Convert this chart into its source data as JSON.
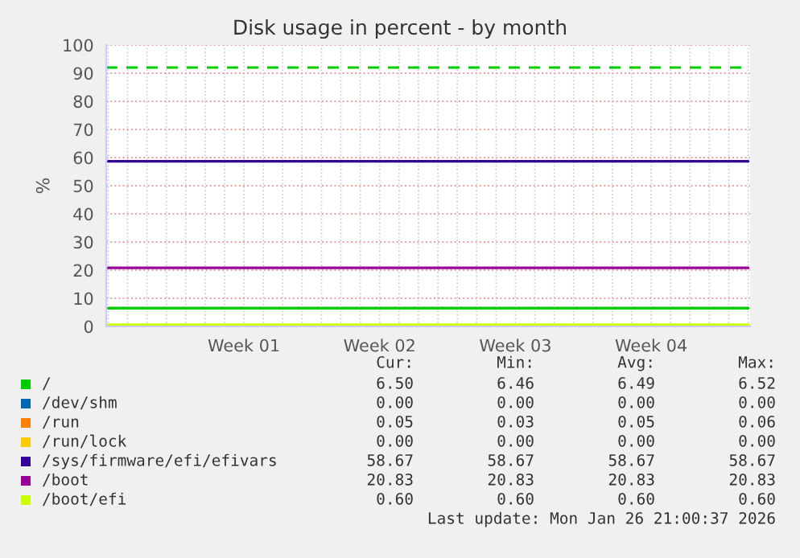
{
  "chart_data": {
    "type": "line",
    "title": "Disk usage in percent - by month",
    "ylabel": "%",
    "categories": [
      null,
      null,
      null,
      null,
      null,
      null,
      null,
      "Week 01",
      null,
      null,
      null,
      null,
      null,
      null,
      "Week 02",
      null,
      null,
      null,
      null,
      null,
      null,
      "Week 03",
      null,
      null,
      null,
      null,
      null,
      null,
      "Week 04",
      null,
      null,
      null,
      null,
      null
    ],
    "series": [
      {
        "name": "/",
        "color": "#00cc00",
        "values": [
          6.5,
          6.5,
          6.5,
          6.5,
          6.5,
          6.5,
          6.5,
          6.5,
          6.5,
          6.5,
          6.5,
          6.5,
          6.5,
          6.5,
          6.5,
          6.5,
          6.5,
          6.5,
          6.5,
          6.5,
          6.5,
          6.5,
          6.5,
          6.5,
          6.5,
          6.5,
          6.5,
          6.5,
          6.5,
          6.5,
          6.5,
          6.5,
          6.5,
          6.5
        ]
      },
      {
        "name": "/dev/shm",
        "color": "#0066b3",
        "values": [
          null,
          null,
          null,
          null,
          null,
          null,
          null,
          null,
          null,
          null,
          null,
          null,
          null,
          null,
          null,
          null,
          null,
          null,
          null,
          null,
          null,
          null,
          null,
          null,
          null,
          null,
          null,
          null,
          null,
          null,
          null,
          null,
          null,
          null
        ]
      },
      {
        "name": "/run",
        "color": "#ff8000",
        "values": [
          null,
          null,
          null,
          null,
          null,
          null,
          null,
          null,
          null,
          null,
          null,
          null,
          null,
          null,
          null,
          null,
          null,
          null,
          null,
          null,
          null,
          null,
          null,
          null,
          null,
          null,
          null,
          null,
          null,
          null,
          null,
          null,
          null,
          null
        ]
      },
      {
        "name": "/run/lock",
        "color": "#ffcc00",
        "values": [
          null,
          null,
          null,
          null,
          null,
          null,
          null,
          null,
          null,
          null,
          null,
          null,
          null,
          null,
          null,
          null,
          null,
          null,
          null,
          null,
          null,
          null,
          null,
          null,
          null,
          null,
          null,
          null,
          null,
          null,
          null,
          null,
          null,
          null
        ]
      },
      {
        "name": "/sys/firmware/efi/efivars",
        "color": "#330099",
        "values": [
          58.7,
          58.7,
          58.7,
          58.7,
          58.7,
          58.7,
          58.7,
          58.7,
          58.7,
          58.7,
          58.7,
          58.7,
          58.7,
          58.7,
          58.7,
          58.7,
          58.7,
          58.7,
          58.7,
          58.7,
          58.7,
          58.7,
          58.7,
          58.7,
          58.7,
          58.7,
          58.7,
          58.7,
          58.7,
          58.7,
          58.7,
          58.7,
          58.7,
          58.7
        ]
      },
      {
        "name": "/boot",
        "color": "#990099",
        "values": [
          20.8,
          20.8,
          20.8,
          20.8,
          20.8,
          20.8,
          20.8,
          20.8,
          20.8,
          20.8,
          20.8,
          20.8,
          20.8,
          20.8,
          20.8,
          20.8,
          20.8,
          20.8,
          20.8,
          20.8,
          20.8,
          20.8,
          20.8,
          20.8,
          20.8,
          20.8,
          20.8,
          20.8,
          20.8,
          20.8,
          20.8,
          20.8,
          20.8,
          20.8
        ]
      },
      {
        "name": "/boot/efi",
        "color": "#ccff00",
        "values": [
          0.6,
          0.6,
          0.6,
          0.6,
          0.6,
          0.6,
          0.6,
          0.6,
          0.6,
          0.6,
          0.6,
          0.6,
          0.6,
          0.6,
          0.6,
          0.6,
          0.6,
          0.6,
          0.6,
          0.6,
          0.6,
          0.6,
          0.6,
          0.6,
          0.6,
          0.6,
          0.6,
          0.6,
          0.6,
          0.6,
          0.6,
          0.6,
          0.6,
          0.6
        ]
      }
    ],
    "ylim": [
      0,
      100
    ],
    "yticks": [
      0,
      10,
      20,
      30,
      40,
      50,
      60,
      70,
      80,
      90,
      100
    ],
    "ref_lines": [
      {
        "axis": "y",
        "value": 92,
        "color": "#00cc00",
        "line_style": "dashed"
      }
    ],
    "grid": true,
    "legend": "bottom",
    "marker": "none",
    "line_style": "solid",
    "annotations": [
      "Cur:",
      "Min:",
      "Avg:",
      "Max:",
      "6.50",
      "6.46",
      "6.49",
      "6.52",
      "0.00",
      "0.00",
      "0.00",
      "0.00",
      "0.05",
      "0.03",
      "0.05",
      "0.06",
      "0.00",
      "0.00",
      "0.00",
      "0.00",
      "58.67",
      "58.67",
      "58.67",
      "58.67",
      "20.83",
      "20.83",
      "20.83",
      "20.83",
      "0.60",
      "0.60",
      "0.60",
      "0.60",
      "Last update: Mon Jan 26 21:00:37 2026"
    ]
  }
}
